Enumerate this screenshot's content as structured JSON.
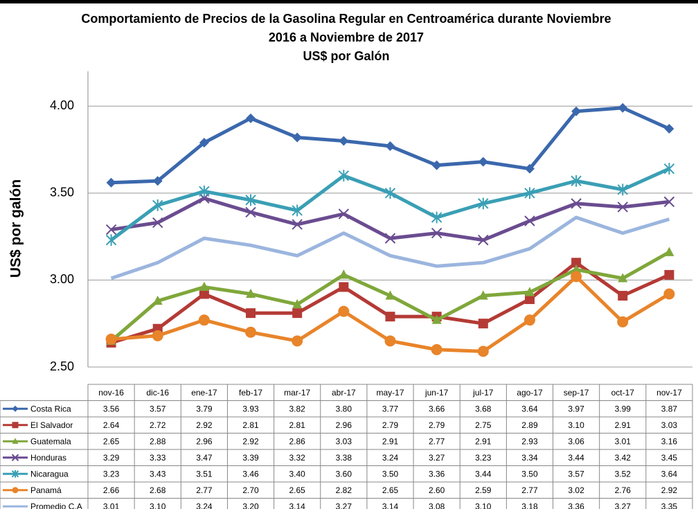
{
  "chart_data": {
    "type": "line",
    "title": [
      "Comportamiento de Precios de la Gasolina Regular en Centroamérica durante Noviembre",
      "2016 a Noviembre de 2017"
    ],
    "subtitle": "US$ por Galón",
    "ylabel": "US$ por galón",
    "categories": [
      "nov-16",
      "dic-16",
      "ene-17",
      "feb-17",
      "mar-17",
      "abr-17",
      "may-17",
      "jun-17",
      "jul-17",
      "ago-17",
      "sep-17",
      "oct-17",
      "nov-17"
    ],
    "ylim": [
      2.5,
      4.2
    ],
    "yticks": [
      {
        "value": 2.5,
        "label": "2.50"
      },
      {
        "value": 3,
        "label": "3.00"
      },
      {
        "value": 3.5,
        "label": "3.50"
      },
      {
        "value": 4,
        "label": "4.00"
      }
    ],
    "grid": true,
    "series": [
      {
        "name": "Costa Rica",
        "color": "#3b68ad",
        "marker": "diamond",
        "values": [
          3.56,
          3.57,
          3.79,
          3.93,
          3.82,
          3.8,
          3.77,
          3.66,
          3.68,
          3.64,
          3.97,
          3.99,
          3.87
        ],
        "value_labels": [
          "3.56",
          "3.57",
          "3.79",
          "3.93",
          "3.82",
          "3.80",
          "3.77",
          "3.66",
          "3.68",
          "3.64",
          "3.97",
          "3.99",
          "3.87"
        ]
      },
      {
        "name": "El Salvador",
        "color": "#b43a35",
        "marker": "square",
        "values": [
          2.64,
          2.72,
          2.92,
          2.81,
          2.81,
          2.96,
          2.79,
          2.79,
          2.75,
          2.89,
          3.1,
          2.91,
          3.03
        ],
        "value_labels": [
          "2.64",
          "2.72",
          "2.92",
          "2.81",
          "2.81",
          "2.96",
          "2.79",
          "2.79",
          "2.75",
          "2.89",
          "3.10",
          "2.91",
          "3.03"
        ]
      },
      {
        "name": "Guatemala",
        "color": "#7fa73b",
        "marker": "triangle",
        "values": [
          2.65,
          2.88,
          2.96,
          2.92,
          2.86,
          3.03,
          2.91,
          2.77,
          2.91,
          2.93,
          3.06,
          3.01,
          3.16
        ],
        "value_labels": [
          "2.65",
          "2.88",
          "2.96",
          "2.92",
          "2.86",
          "3.03",
          "2.91",
          "2.77",
          "2.91",
          "2.93",
          "3.06",
          "3.01",
          "3.16"
        ]
      },
      {
        "name": "Honduras",
        "color": "#6a4c90",
        "marker": "x",
        "values": [
          3.29,
          3.33,
          3.47,
          3.39,
          3.32,
          3.38,
          3.24,
          3.27,
          3.23,
          3.34,
          3.44,
          3.42,
          3.45
        ],
        "value_labels": [
          "3.29",
          "3.33",
          "3.47",
          "3.39",
          "3.32",
          "3.38",
          "3.24",
          "3.27",
          "3.23",
          "3.34",
          "3.44",
          "3.42",
          "3.45"
        ]
      },
      {
        "name": "Nicaragua",
        "color": "#3a9fb5",
        "marker": "star",
        "values": [
          3.23,
          3.43,
          3.51,
          3.46,
          3.4,
          3.6,
          3.5,
          3.36,
          3.44,
          3.5,
          3.57,
          3.52,
          3.64
        ],
        "value_labels": [
          "3.23",
          "3.43",
          "3.51",
          "3.46",
          "3.40",
          "3.60",
          "3.50",
          "3.36",
          "3.44",
          "3.50",
          "3.57",
          "3.52",
          "3.64"
        ]
      },
      {
        "name": "Panamá",
        "color": "#e8842a",
        "marker": "circle",
        "values": [
          2.66,
          2.68,
          2.77,
          2.7,
          2.65,
          2.82,
          2.65,
          2.6,
          2.59,
          2.77,
          3.02,
          2.76,
          2.92
        ],
        "value_labels": [
          "2.66",
          "2.68",
          "2.77",
          "2.70",
          "2.65",
          "2.82",
          "2.65",
          "2.60",
          "2.59",
          "2.77",
          "3.02",
          "2.76",
          "2.92"
        ]
      },
      {
        "name": "Promedio C.A",
        "color": "#9bb5de",
        "marker": "none",
        "values": [
          3.01,
          3.1,
          3.24,
          3.2,
          3.14,
          3.27,
          3.14,
          3.08,
          3.1,
          3.18,
          3.36,
          3.27,
          3.35
        ],
        "value_labels": [
          "3.01",
          "3.10",
          "3.24",
          "3.20",
          "3.14",
          "3.27",
          "3.14",
          "3.08",
          "3.10",
          "3.18",
          "3.36",
          "3.27",
          "3.35"
        ]
      }
    ]
  }
}
